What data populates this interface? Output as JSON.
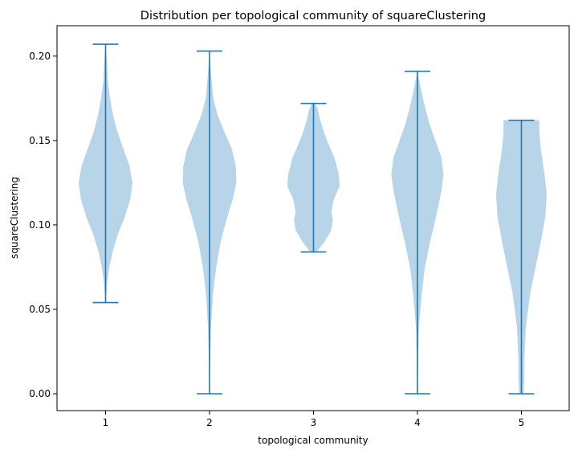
{
  "chart_data": {
    "type": "violin",
    "title": "Distribution per topological community of squareClustering",
    "xlabel": "topological community",
    "ylabel": "squareClustering",
    "categories": [
      "1",
      "2",
      "3",
      "4",
      "5"
    ],
    "ylim": [
      -0.01,
      0.218
    ],
    "yticks": [
      {
        "value": 0.0,
        "label": "0.00"
      },
      {
        "value": 0.05,
        "label": "0.05"
      },
      {
        "value": 0.1,
        "label": "0.10"
      },
      {
        "value": 0.15,
        "label": "0.15"
      },
      {
        "value": 0.2,
        "label": "0.20"
      }
    ],
    "grid": false,
    "colors": {
      "body": "#b8d4e8",
      "line": "#1f77b4"
    },
    "series": [
      {
        "category": "1",
        "min": 0.054,
        "max": 0.207,
        "density": [
          [
            0.054,
            0.0
          ],
          [
            0.065,
            0.02
          ],
          [
            0.075,
            0.05
          ],
          [
            0.085,
            0.1
          ],
          [
            0.095,
            0.17
          ],
          [
            0.105,
            0.26
          ],
          [
            0.115,
            0.33
          ],
          [
            0.125,
            0.36
          ],
          [
            0.135,
            0.32
          ],
          [
            0.145,
            0.24
          ],
          [
            0.155,
            0.16
          ],
          [
            0.165,
            0.1
          ],
          [
            0.175,
            0.06
          ],
          [
            0.185,
            0.03
          ],
          [
            0.195,
            0.02
          ],
          [
            0.207,
            0.0
          ]
        ]
      },
      {
        "category": "2",
        "min": 0.0,
        "max": 0.203,
        "density": [
          [
            0.0,
            0.0
          ],
          [
            0.02,
            0.01
          ],
          [
            0.04,
            0.02
          ],
          [
            0.06,
            0.05
          ],
          [
            0.075,
            0.09
          ],
          [
            0.09,
            0.15
          ],
          [
            0.105,
            0.24
          ],
          [
            0.115,
            0.31
          ],
          [
            0.125,
            0.36
          ],
          [
            0.135,
            0.35
          ],
          [
            0.145,
            0.3
          ],
          [
            0.155,
            0.2
          ],
          [
            0.165,
            0.11
          ],
          [
            0.175,
            0.05
          ],
          [
            0.19,
            0.02
          ],
          [
            0.203,
            0.0
          ]
        ]
      },
      {
        "category": "3",
        "min": 0.084,
        "max": 0.172,
        "density": [
          [
            0.084,
            0.04
          ],
          [
            0.09,
            0.15
          ],
          [
            0.097,
            0.24
          ],
          [
            0.103,
            0.26
          ],
          [
            0.108,
            0.24
          ],
          [
            0.115,
            0.27
          ],
          [
            0.123,
            0.35
          ],
          [
            0.13,
            0.34
          ],
          [
            0.14,
            0.28
          ],
          [
            0.148,
            0.2
          ],
          [
            0.155,
            0.14
          ],
          [
            0.162,
            0.09
          ],
          [
            0.168,
            0.06
          ],
          [
            0.172,
            0.02
          ]
        ]
      },
      {
        "category": "4",
        "min": 0.0,
        "max": 0.191,
        "density": [
          [
            0.0,
            0.0
          ],
          [
            0.02,
            0.01
          ],
          [
            0.04,
            0.02
          ],
          [
            0.06,
            0.06
          ],
          [
            0.075,
            0.1
          ],
          [
            0.09,
            0.17
          ],
          [
            0.105,
            0.25
          ],
          [
            0.12,
            0.32
          ],
          [
            0.13,
            0.35
          ],
          [
            0.14,
            0.32
          ],
          [
            0.15,
            0.24
          ],
          [
            0.16,
            0.16
          ],
          [
            0.17,
            0.1
          ],
          [
            0.18,
            0.05
          ],
          [
            0.191,
            0.0
          ]
        ]
      },
      {
        "category": "5",
        "min": 0.0,
        "max": 0.162,
        "density": [
          [
            0.0,
            0.03
          ],
          [
            0.01,
            0.04
          ],
          [
            0.02,
            0.04
          ],
          [
            0.04,
            0.06
          ],
          [
            0.06,
            0.12
          ],
          [
            0.075,
            0.19
          ],
          [
            0.09,
            0.26
          ],
          [
            0.105,
            0.32
          ],
          [
            0.118,
            0.34
          ],
          [
            0.13,
            0.31
          ],
          [
            0.145,
            0.26
          ],
          [
            0.155,
            0.24
          ],
          [
            0.162,
            0.24
          ]
        ]
      }
    ]
  }
}
